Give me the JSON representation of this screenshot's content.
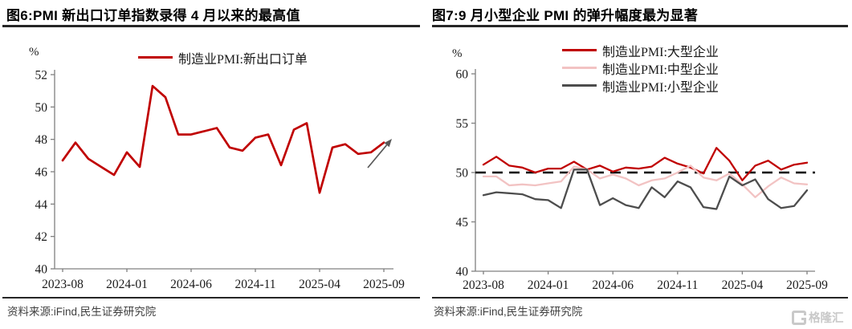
{
  "watermark": {
    "text": "格隆汇",
    "icon": "gelonghui-g-icon"
  },
  "figures": [
    {
      "id": "fig6",
      "title": "图6:PMI 新出口订单指数录得 4 月以来的最高值",
      "unit_label": "%",
      "source": "资料来源:iFind,民生证券研究院",
      "chart_data": {
        "type": "line",
        "months": [
          "2023-08",
          "2023-09",
          "2023-10",
          "2023-11",
          "2023-12",
          "2024-01",
          "2024-02",
          "2024-03",
          "2024-04",
          "2024-05",
          "2024-06",
          "2024-07",
          "2024-08",
          "2024-09",
          "2024-10",
          "2024-11",
          "2024-12",
          "2025-01",
          "2025-02",
          "2025-03",
          "2025-04",
          "2025-05",
          "2025-06",
          "2025-07",
          "2025-08",
          "2025-09"
        ],
        "xticks": [
          "2023-08",
          "2024-01",
          "2024-06",
          "2024-11",
          "2025-04",
          "2025-09"
        ],
        "ylim": [
          40,
          52
        ],
        "yticks": [
          40,
          42,
          44,
          46,
          48,
          50,
          52
        ],
        "grid": false,
        "legend_position": "top",
        "series": [
          {
            "name": "制造业PMI:新出口订单",
            "color": "#c00000",
            "values": [
              46.7,
              47.8,
              46.8,
              46.3,
              45.8,
              47.2,
              46.3,
              51.3,
              50.6,
              48.3,
              48.3,
              48.5,
              48.7,
              47.5,
              47.3,
              48.1,
              48.3,
              46.4,
              48.6,
              49.0,
              44.7,
              47.5,
              47.7,
              47.1,
              47.2,
              47.8
            ]
          }
        ],
        "annotation": "gray up-right trend arrow near the latest point"
      }
    },
    {
      "id": "fig7",
      "title": "图7:9 月小型企业 PMI 的弹升幅度最为显著",
      "unit_label": "%",
      "source": "资料来源:iFind,民生证券研究院",
      "chart_data": {
        "type": "line",
        "months": [
          "2023-08",
          "2023-09",
          "2023-10",
          "2023-11",
          "2023-12",
          "2024-01",
          "2024-02",
          "2024-03",
          "2024-04",
          "2024-05",
          "2024-06",
          "2024-07",
          "2024-08",
          "2024-09",
          "2024-10",
          "2024-11",
          "2024-12",
          "2025-01",
          "2025-02",
          "2025-03",
          "2025-04",
          "2025-05",
          "2025-06",
          "2025-07",
          "2025-08",
          "2025-09"
        ],
        "xticks": [
          "2023-08",
          "2024-01",
          "2024-06",
          "2024-11",
          "2025-04",
          "2025-09"
        ],
        "ylim": [
          40,
          60
        ],
        "yticks": [
          40,
          45,
          50,
          55,
          60
        ],
        "grid": false,
        "legend_position": "top",
        "refline": {
          "value": 50,
          "style": "dashed",
          "color": "#000000"
        },
        "series": [
          {
            "name": "制造业PMI:大型企业",
            "color": "#c00000",
            "values": [
              50.8,
              51.6,
              50.7,
              50.5,
              50.0,
              50.4,
              50.4,
              51.1,
              50.3,
              50.7,
              50.1,
              50.5,
              50.4,
              50.6,
              51.5,
              50.9,
              50.5,
              49.9,
              52.5,
              51.2,
              49.2,
              50.7,
              51.2,
              50.3,
              50.8,
              51.0
            ]
          },
          {
            "name": "制造业PMI:中型企业",
            "color": "#f2c3c3",
            "values": [
              49.6,
              49.6,
              48.7,
              48.8,
              48.7,
              48.9,
              49.1,
              50.6,
              50.3,
              49.4,
              49.8,
              49.4,
              48.7,
              49.2,
              49.4,
              50.0,
              50.7,
              49.5,
              49.2,
              49.9,
              48.8,
              47.5,
              48.6,
              49.5,
              48.9,
              48.8
            ]
          },
          {
            "name": "制造业PMI:小型企业",
            "color": "#4d4d4d",
            "values": [
              47.7,
              48.0,
              47.9,
              47.8,
              47.3,
              47.2,
              46.4,
              50.3,
              50.3,
              46.7,
              47.4,
              46.7,
              46.4,
              48.5,
              47.5,
              49.1,
              48.5,
              46.5,
              46.3,
              49.6,
              48.7,
              49.3,
              47.3,
              46.4,
              46.6,
              48.2
            ]
          }
        ]
      }
    }
  ]
}
